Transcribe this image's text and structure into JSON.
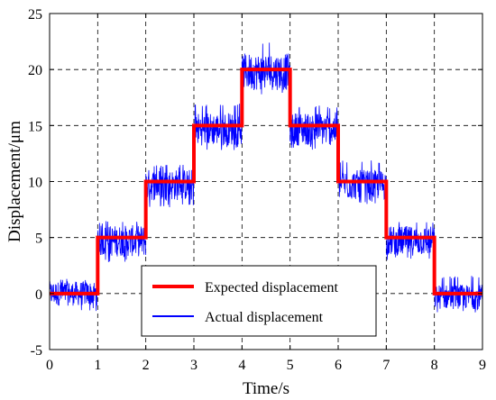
{
  "chart_data": {
    "type": "line",
    "title": "",
    "xlabel": "Time/s",
    "ylabel": "Displacement/μm",
    "xlim": [
      0,
      9
    ],
    "ylim": [
      -5,
      25
    ],
    "xticks": [
      0,
      1,
      2,
      3,
      4,
      5,
      6,
      7,
      8,
      9
    ],
    "yticks": [
      -5,
      0,
      5,
      10,
      15,
      20,
      25
    ],
    "grid": true,
    "legend_position": "bottom-center",
    "series": [
      {
        "name": "Expected displacement",
        "color": "#ff0000",
        "style": "step",
        "x": [
          0,
          1,
          1,
          2,
          2,
          3,
          3,
          4,
          4,
          5,
          5,
          6,
          6,
          7,
          7,
          8,
          8,
          9
        ],
        "y": [
          0,
          0,
          5,
          5,
          10,
          10,
          15,
          15,
          20,
          20,
          15,
          15,
          10,
          10,
          5,
          5,
          0,
          0
        ]
      },
      {
        "name": "Actual displacement",
        "color": "#0000ff",
        "style": "noise-band",
        "segments": [
          {
            "x": [
              0,
              1
            ],
            "center": 0,
            "low": -1.6,
            "high": 1.4
          },
          {
            "x": [
              1,
              2
            ],
            "center": 4.7,
            "low": 2.8,
            "high": 6.5
          },
          {
            "x": [
              2,
              3
            ],
            "center": 9.7,
            "low": 7.7,
            "high": 11.5
          },
          {
            "x": [
              3,
              4
            ],
            "center": 14.7,
            "low": 12.8,
            "high": 17.0
          },
          {
            "x": [
              4,
              5
            ],
            "center": 19.8,
            "low": 17.7,
            "high": 22.4
          },
          {
            "x": [
              5,
              6
            ],
            "center": 14.7,
            "low": 12.8,
            "high": 16.8
          },
          {
            "x": [
              6,
              7
            ],
            "center": 9.7,
            "low": 8.0,
            "high": 11.9
          },
          {
            "x": [
              7,
              8
            ],
            "center": 4.7,
            "low": 3.0,
            "high": 6.6
          },
          {
            "x": [
              8,
              9
            ],
            "center": -0.3,
            "low": -1.7,
            "high": 1.6
          }
        ]
      }
    ]
  }
}
